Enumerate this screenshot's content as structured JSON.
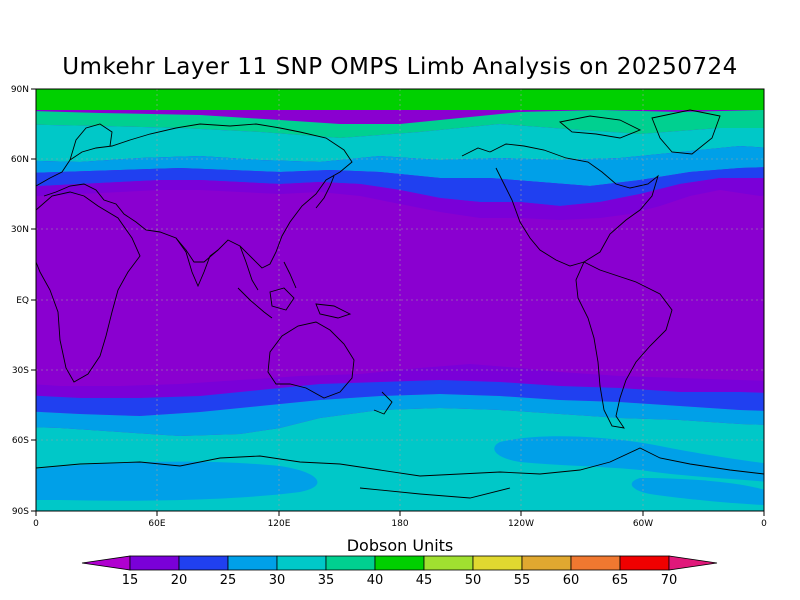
{
  "title": "Umkehr Layer 11 SNP OMPS Limb Analysis on 20250724",
  "map": {
    "lat_ticks": [
      "90N",
      "60N",
      "30N",
      "EQ",
      "30S",
      "60S",
      "90S"
    ],
    "lon_ticks": [
      "0",
      "60E",
      "120E",
      "180",
      "120W",
      "60W",
      "0"
    ]
  },
  "colorbar": {
    "title": "Dobson Units",
    "ticks": [
      "15",
      "20",
      "25",
      "30",
      "35",
      "40",
      "45",
      "50",
      "55",
      "60",
      "65",
      "70"
    ],
    "below_color": "#b000d0",
    "above_color": "#e0187a",
    "colors": [
      "#7a00d8",
      "#2040f0",
      "#00a0e8",
      "#00c8c8",
      "#00d090",
      "#00d000",
      "#a0e030",
      "#e0d830",
      "#e0a830",
      "#f07830",
      "#f00000"
    ]
  },
  "chart_data": {
    "type": "heatmap",
    "title": "Umkehr Layer 11 SNP OMPS Limb Analysis on 20250724",
    "units": "Dobson Units",
    "lat_range": [
      -90,
      90
    ],
    "lon_range": [
      0,
      360
    ],
    "zonal_profile": [
      {
        "lat": 90,
        "value": 42
      },
      {
        "lat": 80,
        "value": 42
      },
      {
        "lat": 70,
        "value": 37
      },
      {
        "lat": 60,
        "value": 32
      },
      {
        "lat": 50,
        "value": 23
      },
      {
        "lat": 40,
        "value": 15
      },
      {
        "lat": 0,
        "value": 12
      },
      {
        "lat": -30,
        "value": 14
      },
      {
        "lat": -40,
        "value": 22
      },
      {
        "lat": -50,
        "value": 32
      },
      {
        "lat": -60,
        "value": 33
      },
      {
        "lat": -70,
        "value": 32
      },
      {
        "lat": -80,
        "value": 31
      },
      {
        "lat": -90,
        "value": 32
      }
    ],
    "levels": [
      15,
      20,
      25,
      30,
      35,
      40,
      45,
      50,
      55,
      60,
      65,
      70
    ]
  }
}
